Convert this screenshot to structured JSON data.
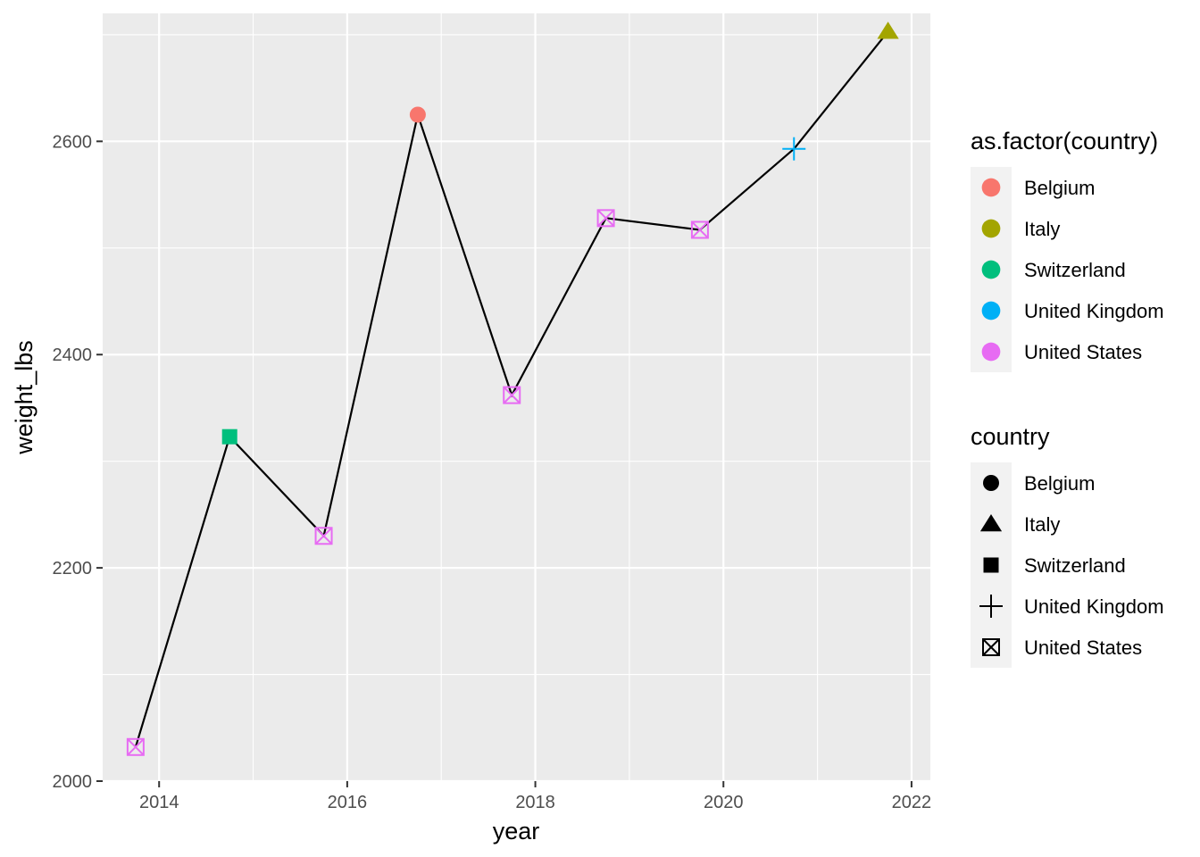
{
  "chart_data": {
    "type": "line",
    "xlabel": "year",
    "ylabel": "weight_lbs",
    "xlim": [
      2013.4,
      2022.2
    ],
    "ylim": [
      2000,
      2720
    ],
    "x_ticks": [
      2014,
      2016,
      2018,
      2020,
      2022
    ],
    "y_ticks": [
      2000,
      2200,
      2400,
      2600
    ],
    "grid": true,
    "points": [
      {
        "x": 2013.75,
        "y": 2032,
        "country": "United States"
      },
      {
        "x": 2014.75,
        "y": 2323,
        "country": "Switzerland"
      },
      {
        "x": 2015.75,
        "y": 2230,
        "country": "United States"
      },
      {
        "x": 2016.75,
        "y": 2625,
        "country": "Belgium"
      },
      {
        "x": 2017.75,
        "y": 2362,
        "country": "United States"
      },
      {
        "x": 2018.75,
        "y": 2528,
        "country": "United States"
      },
      {
        "x": 2019.75,
        "y": 2517,
        "country": "United States"
      },
      {
        "x": 2020.75,
        "y": 2593,
        "country": "United Kingdom"
      },
      {
        "x": 2021.75,
        "y": 2703,
        "country": "Italy"
      }
    ],
    "line_color": "#000000",
    "legend_placement": "right",
    "legends": [
      {
        "title": "as.factor(country)",
        "kind": "color",
        "entries": [
          {
            "label": "Belgium",
            "color": "#F8766D"
          },
          {
            "label": "Italy",
            "color": "#A3A500"
          },
          {
            "label": "Switzerland",
            "color": "#00BF7D"
          },
          {
            "label": "United Kingdom",
            "color": "#00B0F6"
          },
          {
            "label": "United States",
            "color": "#E76BF3"
          }
        ]
      },
      {
        "title": "country",
        "kind": "shape",
        "entries": [
          {
            "label": "Belgium",
            "shape": "circle"
          },
          {
            "label": "Italy",
            "shape": "triangle"
          },
          {
            "label": "Switzerland",
            "shape": "square"
          },
          {
            "label": "United Kingdom",
            "shape": "plus"
          },
          {
            "label": "United States",
            "shape": "boxed-x"
          }
        ]
      }
    ],
    "panel_background": "#EBEBEB"
  }
}
